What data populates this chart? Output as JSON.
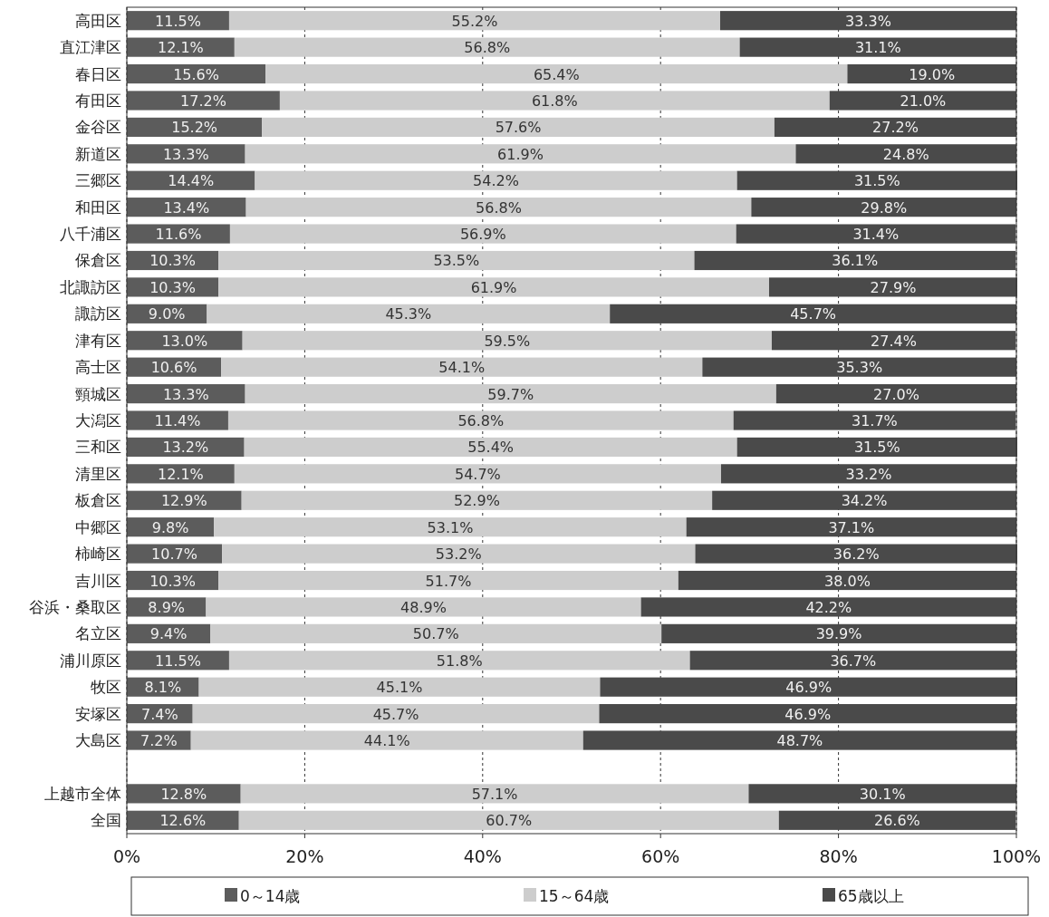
{
  "chart_data": {
    "type": "bar",
    "orientation": "horizontal",
    "stacked": true,
    "grid": "x",
    "legend": "bottom",
    "categories": [
      "高田区",
      "直江津区",
      "春日区",
      "有田区",
      "金谷区",
      "新道区",
      "三郷区",
      "和田区",
      "八千浦区",
      "保倉区",
      "北諏訪区",
      "諏訪区",
      "津有区",
      "高士区",
      "頸城区",
      "大潟区",
      "三和区",
      "清里区",
      "板倉区",
      "中郷区",
      "柿崎区",
      "吉川区",
      "谷浜・桑取区",
      "名立区",
      "浦川原区",
      "牧区",
      "安塚区",
      "大島区",
      null,
      "上越市全体",
      "全国"
    ],
    "xlim": [
      0,
      100
    ],
    "xticks": [
      {
        "value": 0,
        "label": "0%"
      },
      {
        "value": 20,
        "label": "20%"
      },
      {
        "value": 40,
        "label": "40%"
      },
      {
        "value": 60,
        "label": "60%"
      },
      {
        "value": 80,
        "label": "80%"
      },
      {
        "value": 100,
        "label": "100%"
      }
    ],
    "series": [
      {
        "name": "0～14歳",
        "color": "#5c5c5c",
        "values": [
          11.5,
          12.1,
          15.6,
          17.2,
          15.2,
          13.3,
          14.4,
          13.4,
          11.6,
          10.3,
          10.3,
          9.0,
          13.0,
          10.6,
          13.3,
          11.4,
          13.2,
          12.1,
          12.9,
          9.8,
          10.7,
          10.3,
          8.9,
          9.4,
          11.5,
          8.1,
          7.4,
          7.2,
          null,
          12.8,
          12.6
        ],
        "value_labels": [
          "11.5%",
          "12.1%",
          "15.6%",
          "17.2%",
          "15.2%",
          "13.3%",
          "14.4%",
          "13.4%",
          "11.6%",
          "10.3%",
          "10.3%",
          "9.0%",
          "13.0%",
          "10.6%",
          "13.3%",
          "11.4%",
          "13.2%",
          "12.1%",
          "12.9%",
          "9.8%",
          "10.7%",
          "10.3%",
          "8.9%",
          "9.4%",
          "11.5%",
          "8.1%",
          "7.4%",
          "7.2%",
          null,
          "12.8%",
          "12.6%"
        ]
      },
      {
        "name": "15～64歳",
        "color": "#cdcdcd",
        "values": [
          55.2,
          56.8,
          65.4,
          61.8,
          57.6,
          61.9,
          54.2,
          56.8,
          56.9,
          53.5,
          61.9,
          45.3,
          59.5,
          54.1,
          59.7,
          56.8,
          55.4,
          54.7,
          52.9,
          53.1,
          53.2,
          51.7,
          48.9,
          50.7,
          51.8,
          45.1,
          45.7,
          44.1,
          null,
          57.1,
          60.7
        ],
        "value_labels": [
          "55.2%",
          "56.8%",
          "65.4%",
          "61.8%",
          "57.6%",
          "61.9%",
          "54.2%",
          "56.8%",
          "56.9%",
          "53.5%",
          "61.9%",
          "45.3%",
          "59.5%",
          "54.1%",
          "59.7%",
          "56.8%",
          "55.4%",
          "54.7%",
          "52.9%",
          "53.1%",
          "53.2%",
          "51.7%",
          "48.9%",
          "50.7%",
          "51.8%",
          "45.1%",
          "45.7%",
          "44.1%",
          null,
          "57.1%",
          "60.7%"
        ]
      },
      {
        "name": "65歳以上",
        "color": "#4a4a4a",
        "values": [
          33.3,
          31.1,
          19.0,
          21.0,
          27.2,
          24.8,
          31.5,
          29.8,
          31.4,
          36.1,
          27.9,
          45.7,
          27.4,
          35.3,
          27.0,
          31.7,
          31.5,
          33.2,
          34.2,
          37.1,
          36.2,
          38.0,
          42.2,
          39.9,
          36.7,
          46.9,
          46.9,
          48.7,
          null,
          30.1,
          26.6
        ],
        "value_labels": [
          "33.3%",
          "31.1%",
          "19.0%",
          "21.0%",
          "27.2%",
          "24.8%",
          "31.5%",
          "29.8%",
          "31.4%",
          "36.1%",
          "27.9%",
          "45.7%",
          "27.4%",
          "35.3%",
          "27.0%",
          "31.7%",
          "31.5%",
          "33.2%",
          "34.2%",
          "37.1%",
          "36.2%",
          "38.0%",
          "42.2%",
          "39.9%",
          "36.7%",
          "46.9%",
          "46.9%",
          "48.7%",
          null,
          "30.1%",
          "26.6%"
        ]
      }
    ]
  }
}
